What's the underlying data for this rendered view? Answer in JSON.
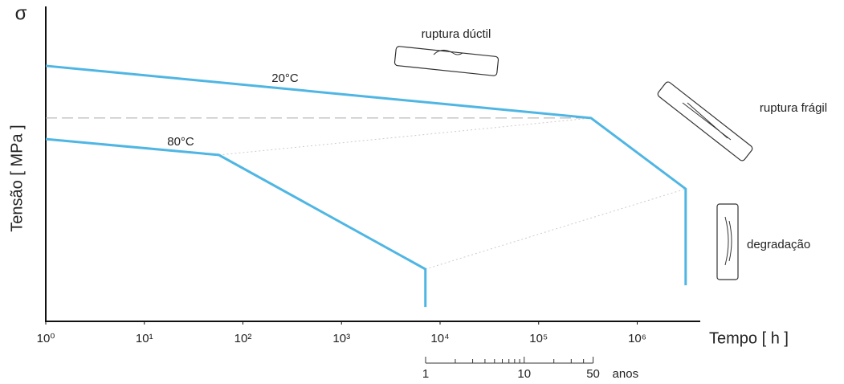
{
  "chart_data": {
    "type": "line",
    "y_symbol": "σ",
    "x_label": "Tempo [ h ]",
    "y_label": "Tensão [ MPa ]",
    "x_scale": "log",
    "xlim": [
      1,
      4200000
    ],
    "ylim": [
      0,
      100
    ],
    "xticks": [
      {
        "value": 1,
        "label": "10⁰"
      },
      {
        "value": 10,
        "label": "10¹"
      },
      {
        "value": 100,
        "label": "10²"
      },
      {
        "value": 1000,
        "label": "10³"
      },
      {
        "value": 10000,
        "label": "10⁴"
      },
      {
        "value": 100000,
        "label": "10⁵"
      },
      {
        "value": 1000000,
        "label": "10⁶"
      }
    ],
    "series": [
      {
        "name": "20°C",
        "color": "#4fb6e3",
        "x": [
          1,
          340000,
          3100000,
          3100000
        ],
        "values": [
          83.7,
          66.6,
          43.4,
          11.8
        ]
      },
      {
        "name": "80°C",
        "color": "#4fb6e3",
        "x": [
          1,
          57,
          7100,
          7100
        ],
        "values": [
          59.7,
          54.5,
          17.1,
          4.7
        ]
      }
    ],
    "years_axis": {
      "label": "anos",
      "ticks": [
        1,
        10,
        50
      ],
      "minor_ticks": [
        2,
        3,
        4,
        5,
        6,
        7,
        8,
        9,
        20,
        30,
        40
      ]
    },
    "annotations": [
      "ruptura dúctil",
      "ruptura frágil",
      "degradação"
    ]
  }
}
